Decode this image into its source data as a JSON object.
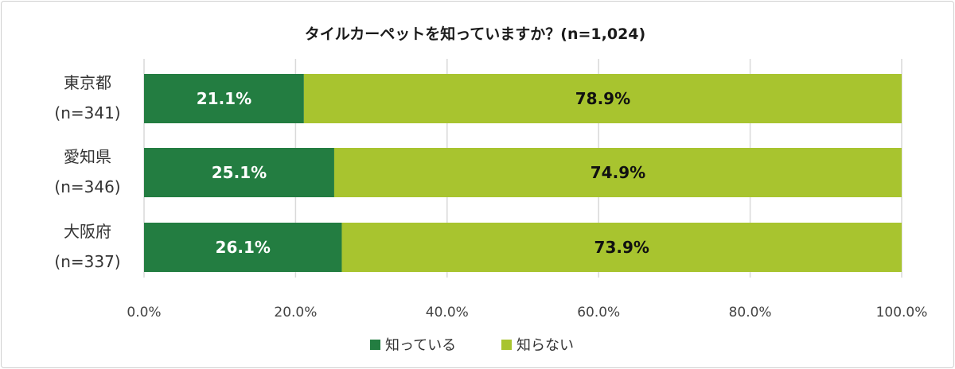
{
  "chart_data": {
    "type": "bar",
    "orientation": "horizontal",
    "stacked": true,
    "title": "タイルカーペットを知っていますか？(n=1,024)",
    "categories": [
      {
        "name": "東京都",
        "n": "(n=341)"
      },
      {
        "name": "愛知県",
        "n": "(n=346)"
      },
      {
        "name": "大阪府",
        "n": "(n=337)"
      }
    ],
    "series": [
      {
        "name": "知っている",
        "color": "#237d41",
        "label_color": "#ffffff",
        "values": [
          21.1,
          25.1,
          26.1
        ],
        "labels": [
          "21.1%",
          "25.1%",
          "26.1%"
        ]
      },
      {
        "name": "知らない",
        "color": "#a8c42f",
        "label_color": "#111111",
        "values": [
          78.9,
          74.9,
          73.9
        ],
        "labels": [
          "78.9%",
          "74.9%",
          "73.9%"
        ]
      }
    ],
    "xlim": [
      0,
      100
    ],
    "xticks": [
      0,
      20,
      40,
      60,
      80,
      100
    ],
    "xtick_labels": [
      "0.0%",
      "20.0%",
      "40.0%",
      "60.0%",
      "80.0%",
      "100.0%"
    ],
    "grid": true,
    "legend_position": "bottom"
  }
}
